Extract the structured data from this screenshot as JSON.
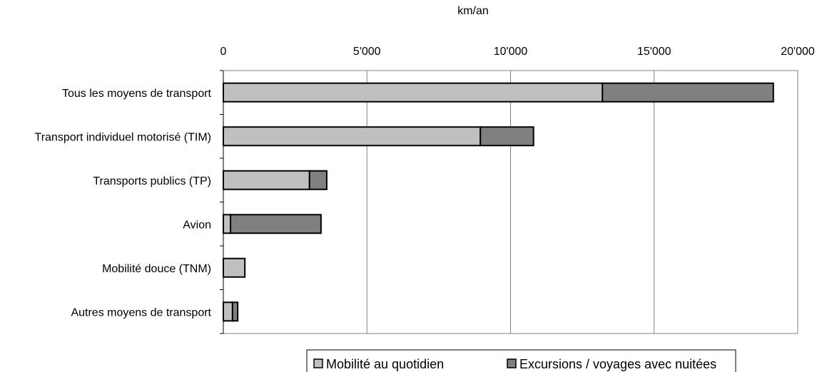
{
  "chart_data": {
    "type": "bar",
    "orientation": "horizontal",
    "stacked": true,
    "title": "",
    "xlabel": "km/an",
    "ylabel": "",
    "xlim": [
      0,
      20000
    ],
    "x_ticks": [
      0,
      5000,
      10000,
      15000,
      20000
    ],
    "x_tick_labels": [
      "0",
      "5'000",
      "10'000",
      "15'000",
      "20'000"
    ],
    "x_axis_position": "top",
    "grid": "vertical",
    "legend_position": "bottom",
    "categories": [
      "Tous les moyens de transport",
      "Transport individuel motorisé (TIM)",
      "Transports publics (TP)",
      "Avion",
      "Mobilité douce (TNM)",
      "Autres moyens de transport"
    ],
    "series": [
      {
        "name": "Mobilité au quotidien",
        "color": "#c0c0c0",
        "values": [
          13200,
          8950,
          3000,
          250,
          750,
          320
        ]
      },
      {
        "name": "Excursions / voyages avec nuitées",
        "color": "#808080",
        "values": [
          5950,
          1850,
          600,
          3150,
          0,
          180
        ]
      }
    ]
  }
}
